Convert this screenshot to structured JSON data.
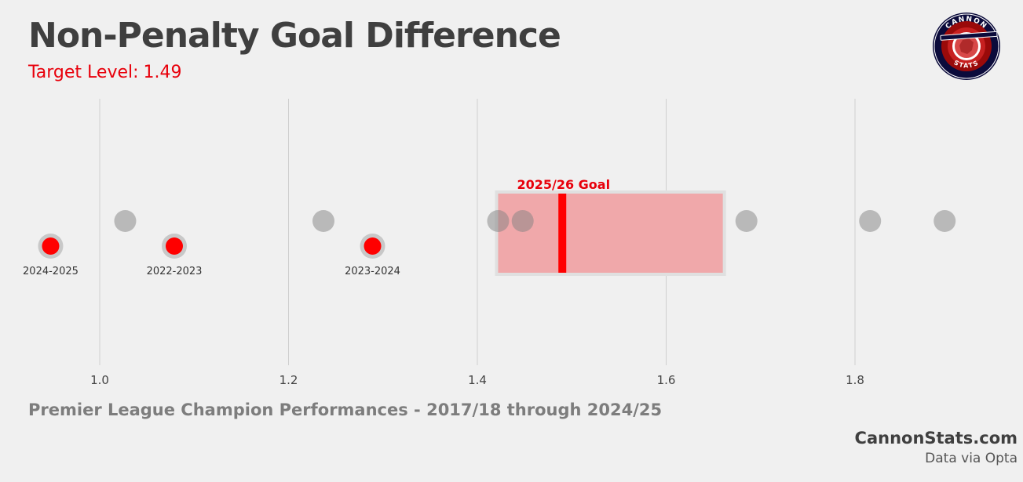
{
  "title": "Non-Penalty Goal Difference",
  "subtitle": {
    "label": "Target Level:",
    "value": "1.49"
  },
  "footer_note": "Premier League Champion Performances - 2017/18 through 2024/25",
  "brand": "CannonStats.com",
  "source": "Data via Opta",
  "logo": {
    "top_text": "CANNON",
    "bottom_text": "STATS"
  },
  "colors": {
    "background": "#f0f0f0",
    "title": "#3f3f3f",
    "accent_red": "#e8000b",
    "neutral_point": "#aaaaaa",
    "goal_band": "#f0a8aa",
    "gridline": "#cfcfcf"
  },
  "chart_data": {
    "type": "scatter",
    "title": "",
    "xlabel": "",
    "ylabel": "",
    "xlim": [
      0.935,
      1.915
    ],
    "x_ticks": [
      1.0,
      1.2,
      1.4,
      1.6,
      1.8
    ],
    "x_tick_labels": [
      "1.0",
      "1.2",
      "1.4",
      "1.6",
      "1.8"
    ],
    "grid": true,
    "series": [
      {
        "role": "other-seasons",
        "points": [
          1.027,
          1.237,
          1.422,
          1.448,
          1.685,
          1.816,
          1.895
        ]
      },
      {
        "role": "labeled-seasons",
        "points": [
          {
            "x": 0.948,
            "label": "2024-2025"
          },
          {
            "x": 1.079,
            "label": "2022-2023"
          },
          {
            "x": 1.289,
            "label": "2023-2024"
          }
        ]
      }
    ],
    "goal_range": {
      "label": "2025/26 Goal",
      "min": 1.422,
      "max": 1.66,
      "target": 1.49
    }
  }
}
